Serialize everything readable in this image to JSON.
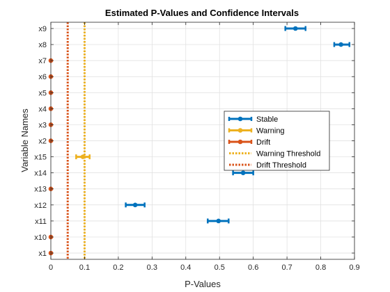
{
  "chart_data": {
    "type": "scatter",
    "title": "Estimated P-Values and Confidence Intervals",
    "xlabel": "P-Values",
    "ylabel": "Variable Names",
    "xlim": [
      0,
      0.9
    ],
    "xticks": [
      "0",
      "0.1",
      "0.2",
      "0.3",
      "0.4",
      "0.5",
      "0.6",
      "0.7",
      "0.8",
      "0.9"
    ],
    "categories": [
      "x1",
      "x10",
      "x11",
      "x12",
      "x13",
      "x14",
      "x15",
      "x2",
      "x3",
      "x4",
      "x5",
      "x6",
      "x7",
      "x8",
      "x9"
    ],
    "grid": true,
    "legend_position": "center-right",
    "series": [
      {
        "name": "Stable",
        "color": "#0072BD",
        "points": [
          {
            "category": "x11",
            "value": 0.497,
            "lower": 0.465,
            "upper": 0.527
          },
          {
            "category": "x12",
            "value": 0.25,
            "lower": 0.222,
            "upper": 0.278
          },
          {
            "category": "x14",
            "value": 0.57,
            "lower": 0.54,
            "upper": 0.6
          },
          {
            "category": "x8",
            "value": 0.86,
            "lower": 0.84,
            "upper": 0.885
          },
          {
            "category": "x9",
            "value": 0.725,
            "lower": 0.695,
            "upper": 0.755
          }
        ]
      },
      {
        "name": "Warning",
        "color": "#EDB120",
        "points": [
          {
            "category": "x15",
            "value": 0.095,
            "lower": 0.075,
            "upper": 0.115
          }
        ]
      },
      {
        "name": "Drift",
        "color": "#D95319",
        "points": [
          {
            "category": "x1",
            "value": 0.0,
            "lower": 0.0,
            "upper": 0.0
          },
          {
            "category": "x10",
            "value": 0.0,
            "lower": 0.0,
            "upper": 0.0
          },
          {
            "category": "x13",
            "value": 0.0,
            "lower": 0.0,
            "upper": 0.0
          },
          {
            "category": "x2",
            "value": 0.0,
            "lower": 0.0,
            "upper": 0.0
          },
          {
            "category": "x3",
            "value": 0.0,
            "lower": 0.0,
            "upper": 0.0
          },
          {
            "category": "x4",
            "value": 0.0,
            "lower": 0.0,
            "upper": 0.0
          },
          {
            "category": "x5",
            "value": 0.0,
            "lower": 0.0,
            "upper": 0.0
          },
          {
            "category": "x6",
            "value": 0.0,
            "lower": 0.0,
            "upper": 0.0
          },
          {
            "category": "x7",
            "value": 0.0,
            "lower": 0.0,
            "upper": 0.0
          }
        ]
      }
    ],
    "thresholds": [
      {
        "name": "Warning Threshold",
        "value": 0.1,
        "color": "#EDB120"
      },
      {
        "name": "Drift Threshold",
        "value": 0.05,
        "color": "#D95319"
      }
    ]
  }
}
